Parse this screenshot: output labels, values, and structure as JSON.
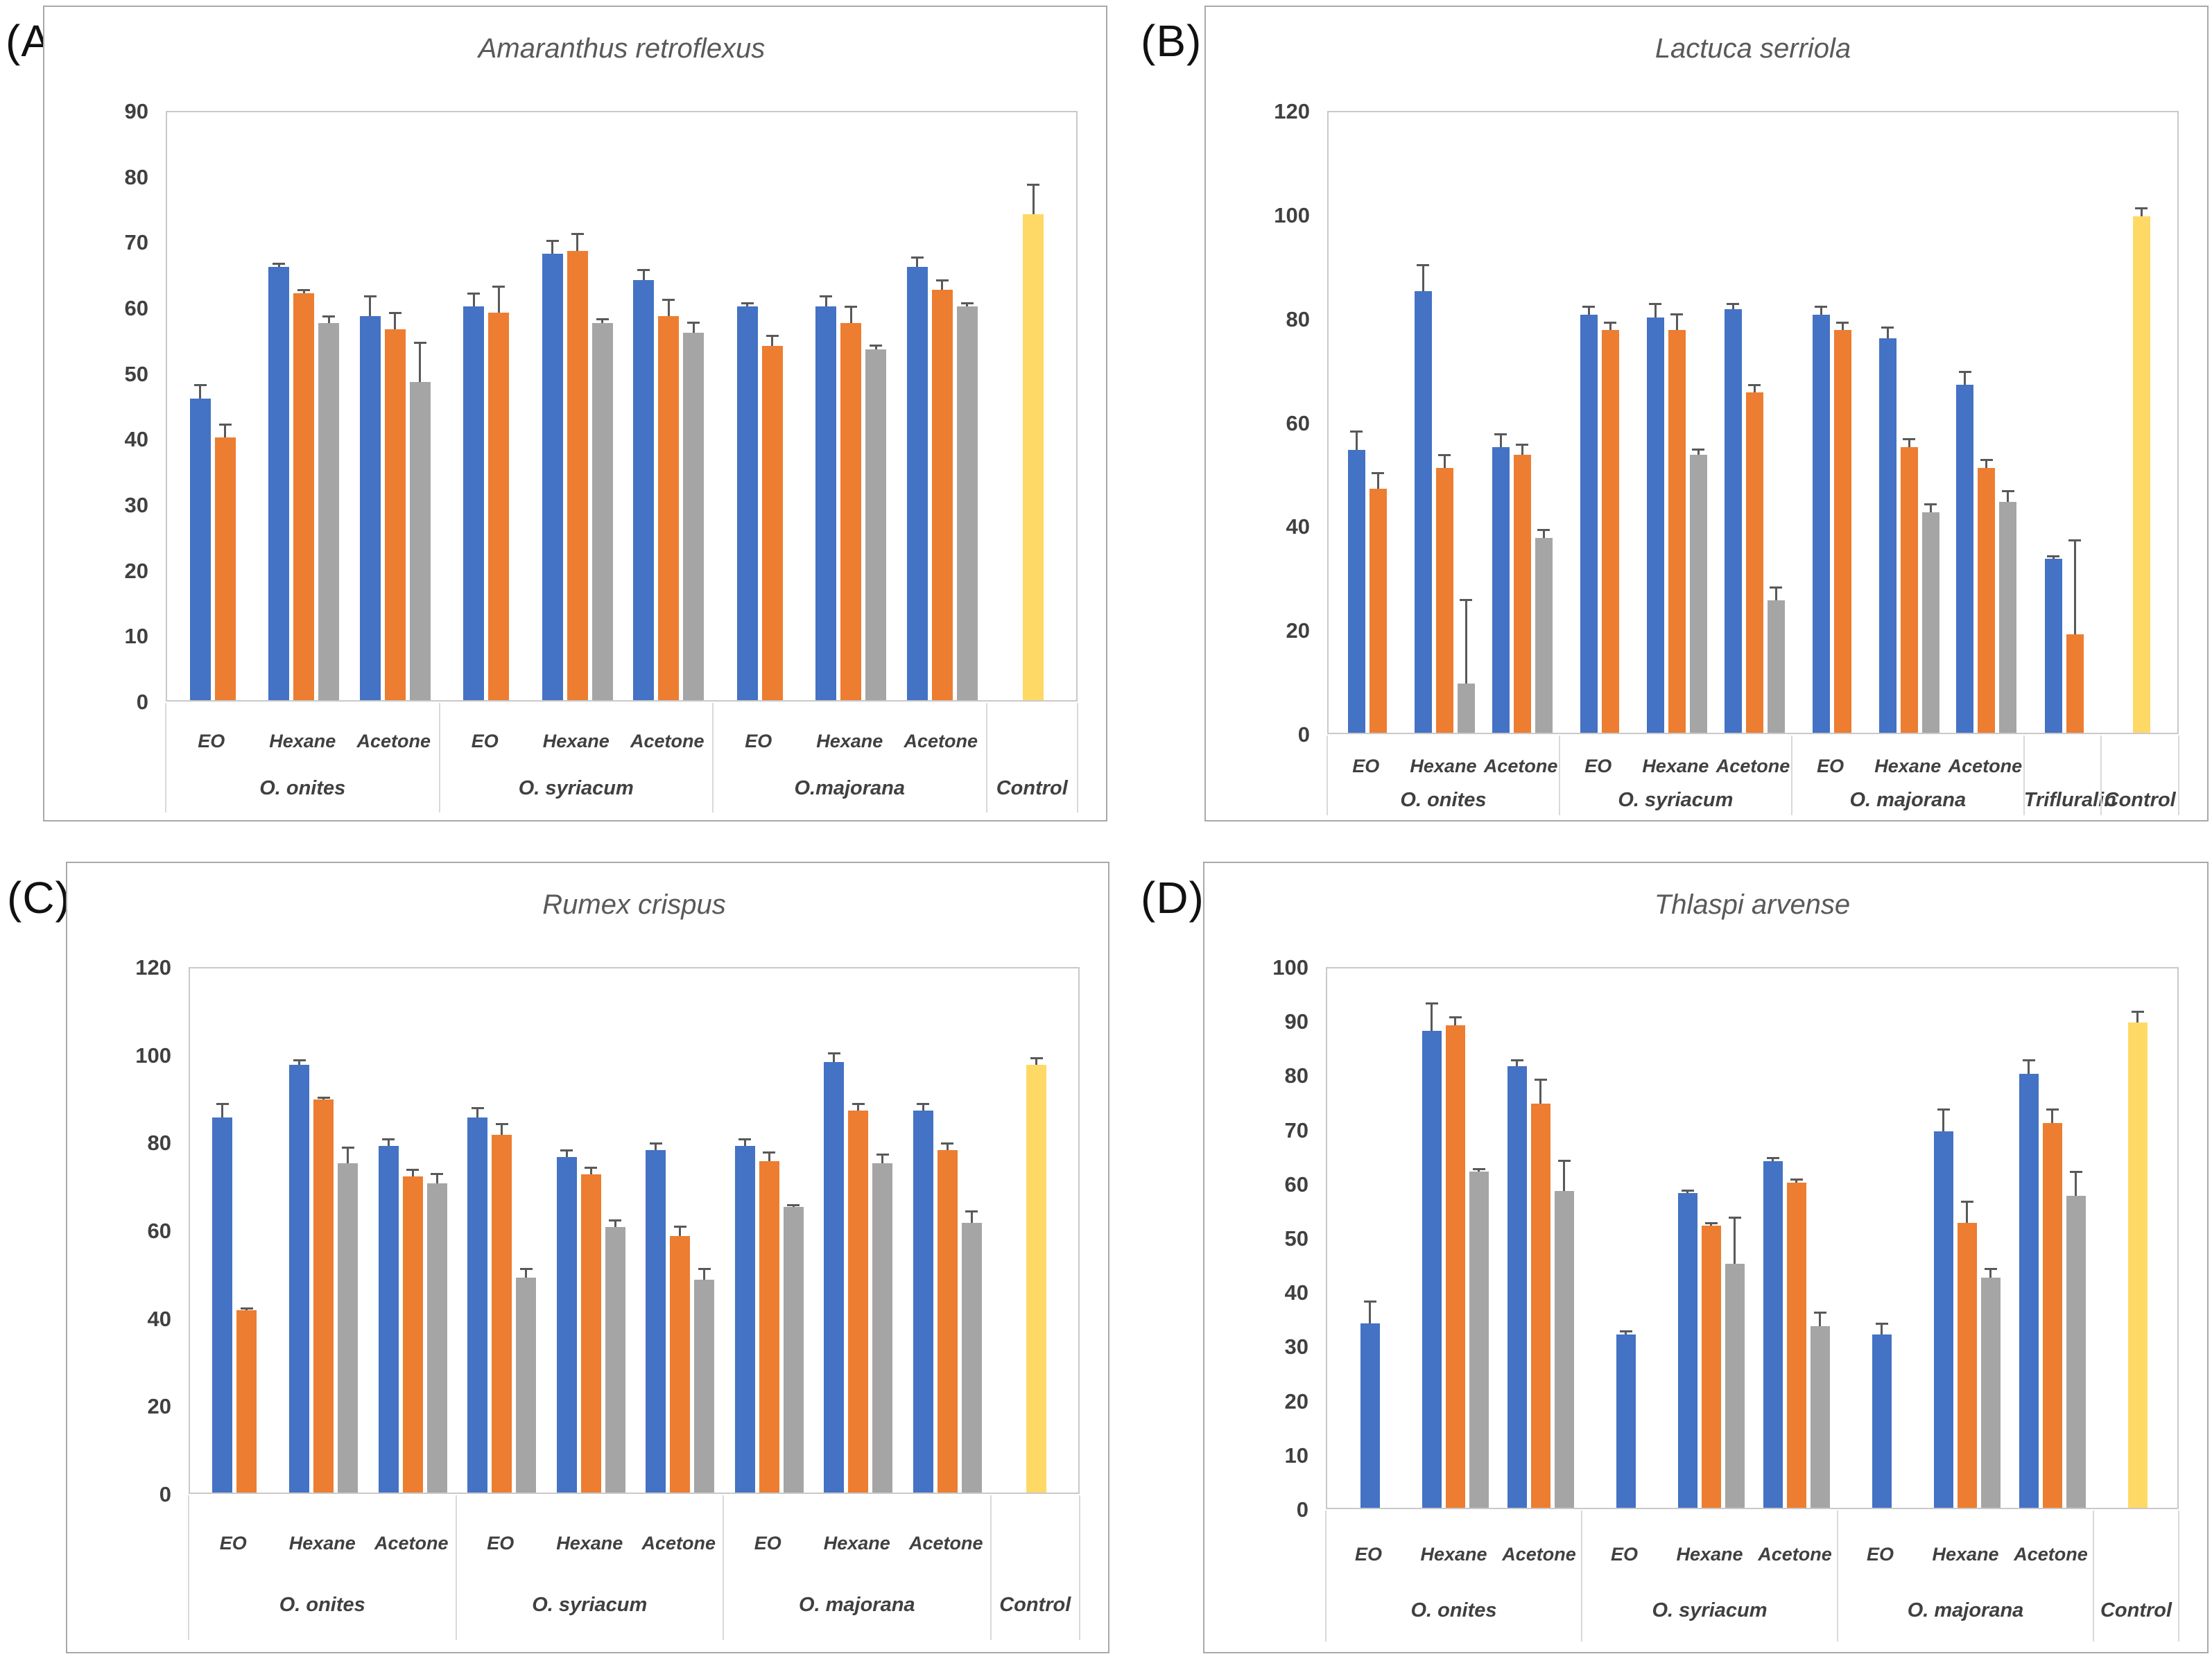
{
  "figure": {
    "background": "#FFFFFF",
    "series_colors": {
      "blue": "#4472C4",
      "orange": "#ED7D31",
      "gray": "#A5A5A5",
      "control": "#FFD966"
    },
    "error_bar_color": "#595959",
    "panel_border_color": "#A9A9A9",
    "plot_border_color": "#C9C9C9",
    "axis_text_color": "#404040",
    "title_text_color": "#595959"
  },
  "chart_data": [
    {
      "panel_letter": "(A)",
      "type": "bar",
      "title": "Amaranthus retroflexus",
      "ylim": [
        0,
        90
      ],
      "ytick_step": 10,
      "yticks": [
        90,
        80,
        70,
        60,
        50,
        40,
        30,
        20,
        10,
        0
      ],
      "grid": false,
      "legend": "none",
      "slots": [
        {
          "treatment": "EO",
          "bars": [
            {
              "series": "blue",
              "value": 46,
              "err": 2
            },
            {
              "series": "orange",
              "value": 40,
              "err": 2
            }
          ]
        },
        {
          "treatment": "Hexane",
          "bars": [
            {
              "series": "blue",
              "value": 66,
              "err": 0.5
            },
            {
              "series": "orange",
              "value": 62,
              "err": 0.5
            },
            {
              "series": "gray",
              "value": 57.5,
              "err": 1
            }
          ]
        },
        {
          "treatment": "Acetone",
          "bars": [
            {
              "series": "blue",
              "value": 58.5,
              "err": 3
            },
            {
              "series": "orange",
              "value": 56.5,
              "err": 2.5
            },
            {
              "series": "gray",
              "value": 48.5,
              "err": 6
            }
          ]
        },
        {
          "treatment": "EO",
          "bars": [
            {
              "series": "blue",
              "value": 60,
              "err": 2
            },
            {
              "series": "orange",
              "value": 59,
              "err": 4
            }
          ]
        },
        {
          "treatment": "Hexane",
          "bars": [
            {
              "series": "blue",
              "value": 68,
              "err": 2
            },
            {
              "series": "orange",
              "value": 68.5,
              "err": 2.5
            },
            {
              "series": "gray",
              "value": 57.5,
              "err": 0.5
            }
          ]
        },
        {
          "treatment": "Acetone",
          "bars": [
            {
              "series": "blue",
              "value": 64,
              "err": 1.5
            },
            {
              "series": "orange",
              "value": 58.5,
              "err": 2.5
            },
            {
              "series": "gray",
              "value": 56,
              "err": 1.5
            }
          ]
        },
        {
          "treatment": "EO",
          "bars": [
            {
              "series": "blue",
              "value": 60,
              "err": 0.5
            },
            {
              "series": "orange",
              "value": 54,
              "err": 1.5
            }
          ]
        },
        {
          "treatment": "Hexane",
          "bars": [
            {
              "series": "blue",
              "value": 60,
              "err": 1.5
            },
            {
              "series": "orange",
              "value": 57.5,
              "err": 2.5
            },
            {
              "series": "gray",
              "value": 53.5,
              "err": 0.5
            }
          ]
        },
        {
          "treatment": "Acetone",
          "bars": [
            {
              "series": "blue",
              "value": 66,
              "err": 1.5
            },
            {
              "series": "orange",
              "value": 62.5,
              "err": 1.5
            },
            {
              "series": "gray",
              "value": 60,
              "err": 0.5
            }
          ]
        },
        {
          "treatment": "",
          "bars": [
            {
              "series": "control",
              "value": 74,
              "err": 4.5
            }
          ]
        }
      ],
      "spans": [
        {
          "label": "O. onites",
          "from": 0,
          "to": 2
        },
        {
          "label": "O. syriacum",
          "from": 3,
          "to": 5
        },
        {
          "label": "O.majorana",
          "from": 6,
          "to": 8
        },
        {
          "label": "Control",
          "from": 9,
          "to": 9
        }
      ]
    },
    {
      "panel_letter": "(B)",
      "type": "bar",
      "title": "Lactuca serriola",
      "ylim": [
        0,
        120
      ],
      "ytick_step": 20,
      "yticks": [
        120,
        100,
        80,
        60,
        40,
        20,
        0
      ],
      "grid": false,
      "legend": "none",
      "slots": [
        {
          "treatment": "EO",
          "bars": [
            {
              "series": "blue",
              "value": 54.5,
              "err": 3.5
            },
            {
              "series": "orange",
              "value": 47,
              "err": 3
            }
          ]
        },
        {
          "treatment": "Hexane",
          "bars": [
            {
              "series": "blue",
              "value": 85,
              "err": 5
            },
            {
              "series": "orange",
              "value": 51,
              "err": 2.5
            },
            {
              "series": "gray",
              "value": 9.5,
              "err": 16
            }
          ]
        },
        {
          "treatment": "Acetone",
          "bars": [
            {
              "series": "blue",
              "value": 55,
              "err": 2.5
            },
            {
              "series": "orange",
              "value": 53.5,
              "err": 2
            },
            {
              "series": "gray",
              "value": 37.5,
              "err": 1.5
            }
          ]
        },
        {
          "treatment": "EO",
          "bars": [
            {
              "series": "blue",
              "value": 80.5,
              "err": 1.5
            },
            {
              "series": "orange",
              "value": 77.5,
              "err": 1.5
            }
          ]
        },
        {
          "treatment": "Hexane",
          "bars": [
            {
              "series": "blue",
              "value": 80,
              "err": 2.5
            },
            {
              "series": "orange",
              "value": 77.5,
              "err": 3
            },
            {
              "series": "gray",
              "value": 53.5,
              "err": 1
            }
          ]
        },
        {
          "treatment": "Acetone",
          "bars": [
            {
              "series": "blue",
              "value": 81.5,
              "err": 1
            },
            {
              "series": "orange",
              "value": 65.5,
              "err": 1.5
            },
            {
              "series": "gray",
              "value": 25.5,
              "err": 2.5
            }
          ]
        },
        {
          "treatment": "EO",
          "bars": [
            {
              "series": "blue",
              "value": 80.5,
              "err": 1.5
            },
            {
              "series": "orange",
              "value": 77.5,
              "err": 1.5
            }
          ]
        },
        {
          "treatment": "Hexane",
          "bars": [
            {
              "series": "blue",
              "value": 76,
              "err": 2
            },
            {
              "series": "orange",
              "value": 55,
              "err": 1.5
            },
            {
              "series": "gray",
              "value": 42.5,
              "err": 1.5
            }
          ]
        },
        {
          "treatment": "Acetone",
          "bars": [
            {
              "series": "blue",
              "value": 67,
              "err": 2.5
            },
            {
              "series": "orange",
              "value": 51,
              "err": 1.5
            },
            {
              "series": "gray",
              "value": 44.5,
              "err": 2
            }
          ]
        },
        {
          "treatment": "",
          "bars": [
            {
              "series": "blue",
              "value": 33.5,
              "err": 0.5
            },
            {
              "series": "orange",
              "value": 19,
              "err": 18
            }
          ]
        },
        {
          "treatment": "",
          "bars": [
            {
              "series": "control",
              "value": 99.5,
              "err": 1.5
            }
          ]
        }
      ],
      "spans": [
        {
          "label": "O. onites",
          "from": 0,
          "to": 2
        },
        {
          "label": "O. syriacum",
          "from": 3,
          "to": 5
        },
        {
          "label": "O. majorana",
          "from": 6,
          "to": 8
        },
        {
          "label": "Trifluralin",
          "from": 9,
          "to": 9
        },
        {
          "label": "Control",
          "from": 10,
          "to": 10
        }
      ]
    },
    {
      "panel_letter": "(C)",
      "type": "bar",
      "title": "Rumex crispus",
      "ylim": [
        0,
        120
      ],
      "ytick_step": 20,
      "yticks": [
        120,
        100,
        80,
        60,
        40,
        20,
        0
      ],
      "grid": false,
      "legend": "none",
      "slots": [
        {
          "treatment": "EO",
          "bars": [
            {
              "series": "blue",
              "value": 85.5,
              "err": 3
            },
            {
              "series": "orange",
              "value": 41.5,
              "err": 0.5
            }
          ]
        },
        {
          "treatment": "Hexane",
          "bars": [
            {
              "series": "blue",
              "value": 97.5,
              "err": 1
            },
            {
              "series": "orange",
              "value": 89.5,
              "err": 0.5
            },
            {
              "series": "gray",
              "value": 75,
              "err": 3.5
            }
          ]
        },
        {
          "treatment": "Acetone",
          "bars": [
            {
              "series": "blue",
              "value": 79,
              "err": 1.5
            },
            {
              "series": "orange",
              "value": 72,
              "err": 1.5
            },
            {
              "series": "gray",
              "value": 70.5,
              "err": 2
            }
          ]
        },
        {
          "treatment": "EO",
          "bars": [
            {
              "series": "blue",
              "value": 85.5,
              "err": 2
            },
            {
              "series": "orange",
              "value": 81.5,
              "err": 2.5
            },
            {
              "series": "gray",
              "value": 49,
              "err": 2
            }
          ]
        },
        {
          "treatment": "Hexane",
          "bars": [
            {
              "series": "blue",
              "value": 76.5,
              "err": 1.5
            },
            {
              "series": "orange",
              "value": 72.5,
              "err": 1.5
            },
            {
              "series": "gray",
              "value": 60.5,
              "err": 1.5
            }
          ]
        },
        {
          "treatment": "Acetone",
          "bars": [
            {
              "series": "blue",
              "value": 78,
              "err": 1.5
            },
            {
              "series": "orange",
              "value": 58.5,
              "err": 2
            },
            {
              "series": "gray",
              "value": 48.5,
              "err": 2.5
            }
          ]
        },
        {
          "treatment": "EO",
          "bars": [
            {
              "series": "blue",
              "value": 79,
              "err": 1.5
            },
            {
              "series": "orange",
              "value": 75.5,
              "err": 2
            },
            {
              "series": "gray",
              "value": 65,
              "err": 0.5
            }
          ]
        },
        {
          "treatment": "Hexane",
          "bars": [
            {
              "series": "blue",
              "value": 98,
              "err": 2
            },
            {
              "series": "orange",
              "value": 87,
              "err": 1.5
            },
            {
              "series": "gray",
              "value": 75,
              "err": 2
            }
          ]
        },
        {
          "treatment": "Acetone",
          "bars": [
            {
              "series": "blue",
              "value": 87,
              "err": 1.5
            },
            {
              "series": "orange",
              "value": 78,
              "err": 1.5
            },
            {
              "series": "gray",
              "value": 61.5,
              "err": 2.5
            }
          ]
        },
        {
          "treatment": "",
          "bars": [
            {
              "series": "control",
              "value": 97.5,
              "err": 1.5
            }
          ]
        }
      ],
      "spans": [
        {
          "label": "O. onites",
          "from": 0,
          "to": 2
        },
        {
          "label": "O. syriacum",
          "from": 3,
          "to": 5
        },
        {
          "label": "O. majorana",
          "from": 6,
          "to": 8
        },
        {
          "label": "Control",
          "from": 9,
          "to": 9
        }
      ]
    },
    {
      "panel_letter": "(D)",
      "type": "bar",
      "title": "Thlaspi arvense",
      "ylim": [
        0,
        100
      ],
      "ytick_step": 10,
      "yticks": [
        100,
        90,
        80,
        70,
        60,
        50,
        40,
        30,
        20,
        10,
        0
      ],
      "grid": false,
      "legend": "none",
      "slots": [
        {
          "treatment": "EO",
          "bars": [
            {
              "series": "blue",
              "value": 34,
              "err": 4
            }
          ]
        },
        {
          "treatment": "Hexane",
          "bars": [
            {
              "series": "blue",
              "value": 88,
              "err": 5
            },
            {
              "series": "orange",
              "value": 89,
              "err": 1.5
            },
            {
              "series": "gray",
              "value": 62,
              "err": 0.5
            }
          ]
        },
        {
          "treatment": "Acetone",
          "bars": [
            {
              "series": "blue",
              "value": 81.5,
              "err": 1
            },
            {
              "series": "orange",
              "value": 74.5,
              "err": 4.5
            },
            {
              "series": "gray",
              "value": 58.5,
              "err": 5.5
            }
          ]
        },
        {
          "treatment": "EO",
          "bars": [
            {
              "series": "blue",
              "value": 32,
              "err": 0.5
            }
          ]
        },
        {
          "treatment": "Hexane",
          "bars": [
            {
              "series": "blue",
              "value": 58,
              "err": 0.5
            },
            {
              "series": "orange",
              "value": 52,
              "err": 0.5
            },
            {
              "series": "gray",
              "value": 45,
              "err": 8.5
            }
          ]
        },
        {
          "treatment": "Acetone",
          "bars": [
            {
              "series": "blue",
              "value": 64,
              "err": 0.5
            },
            {
              "series": "orange",
              "value": 60,
              "err": 0.5
            },
            {
              "series": "gray",
              "value": 33.5,
              "err": 2.5
            }
          ]
        },
        {
          "treatment": "EO",
          "bars": [
            {
              "series": "blue",
              "value": 32,
              "err": 2
            }
          ]
        },
        {
          "treatment": "Hexane",
          "bars": [
            {
              "series": "blue",
              "value": 69.5,
              "err": 4
            },
            {
              "series": "orange",
              "value": 52.5,
              "err": 4
            },
            {
              "series": "gray",
              "value": 42.5,
              "err": 1.5
            }
          ]
        },
        {
          "treatment": "Acetone",
          "bars": [
            {
              "series": "blue",
              "value": 80,
              "err": 2.5
            },
            {
              "series": "orange",
              "value": 71,
              "err": 2.5
            },
            {
              "series": "gray",
              "value": 57.5,
              "err": 4.5
            }
          ]
        },
        {
          "treatment": "",
          "bars": [
            {
              "series": "control",
              "value": 89.5,
              "err": 2
            }
          ]
        }
      ],
      "spans": [
        {
          "label": "O. onites",
          "from": 0,
          "to": 2
        },
        {
          "label": "O. syriacum",
          "from": 3,
          "to": 5
        },
        {
          "label": "O. majorana",
          "from": 6,
          "to": 8
        },
        {
          "label": "Control",
          "from": 9,
          "to": 9
        }
      ]
    }
  ]
}
